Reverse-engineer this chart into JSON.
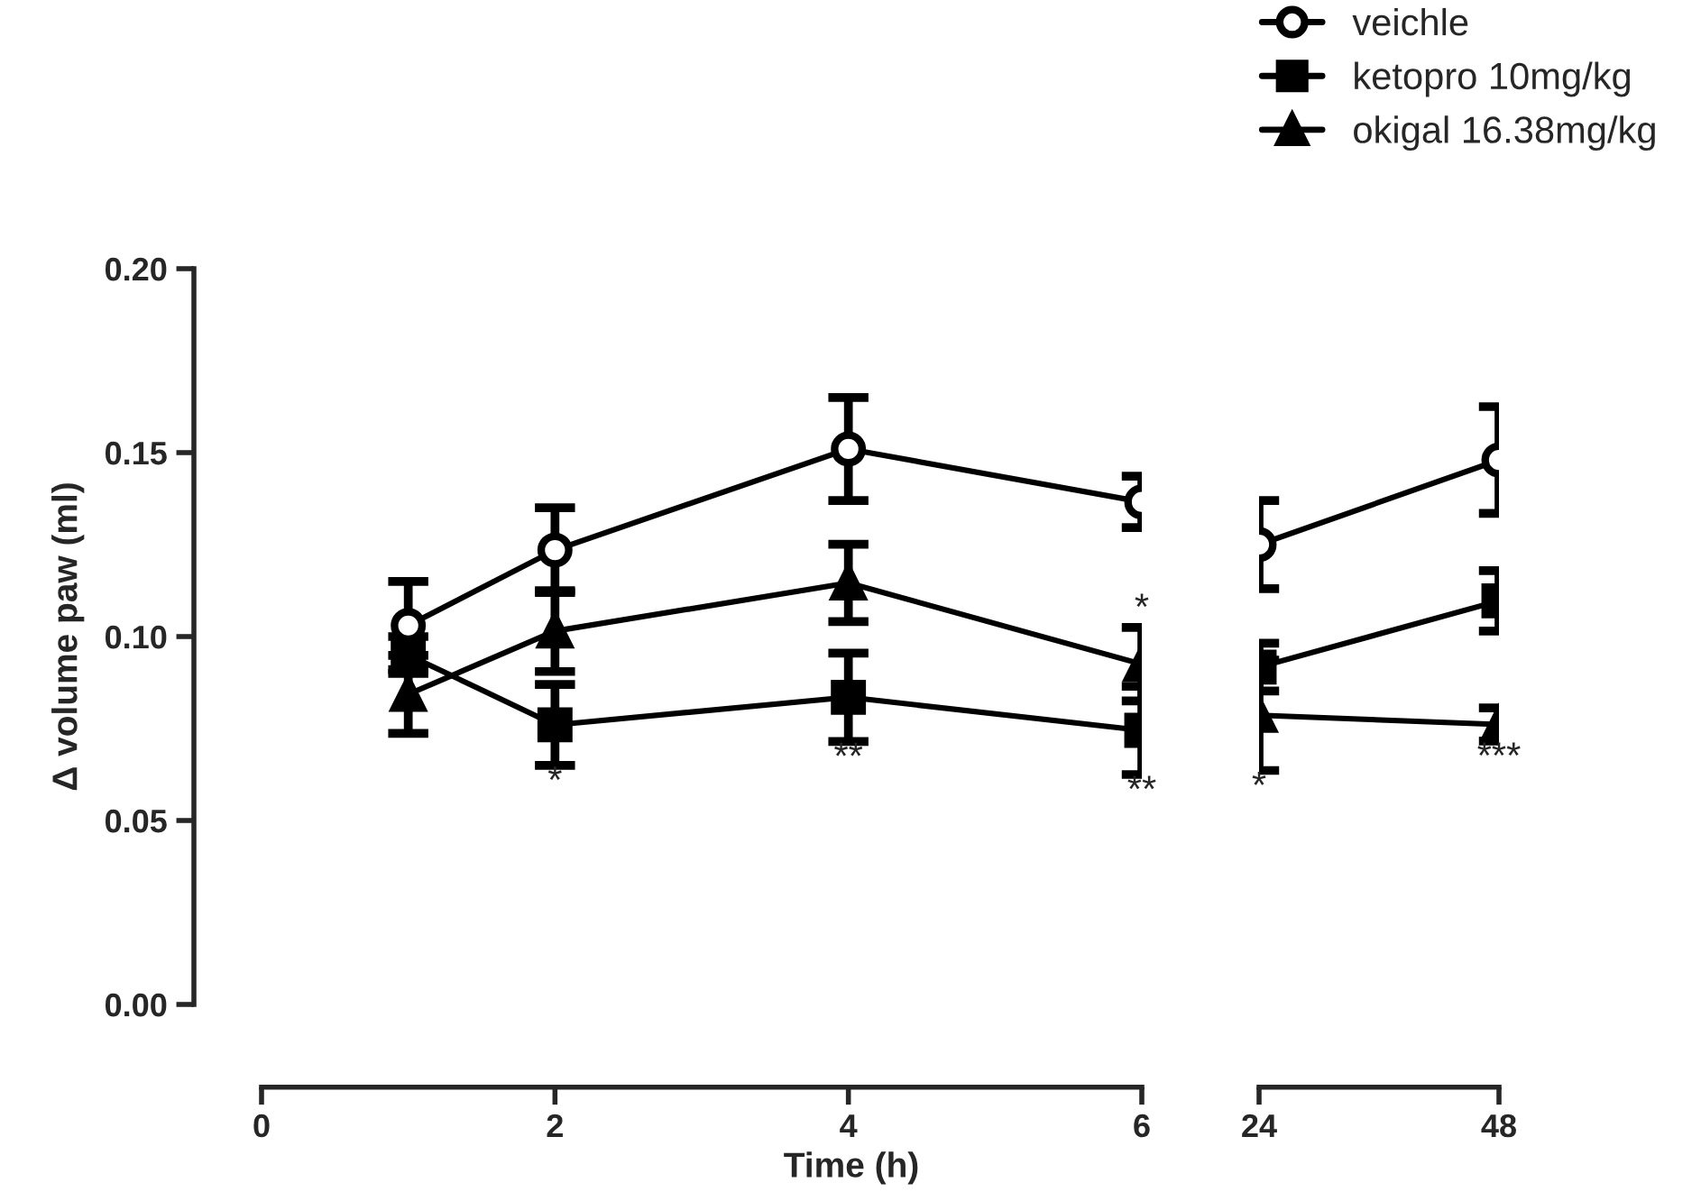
{
  "chart_data": [
    {
      "type": "line",
      "xlabel": "Time (h)",
      "ylabel": "Δ volume paw (ml)",
      "x": [
        1,
        2,
        4,
        6
      ],
      "xlim": [
        0,
        6
      ],
      "xticks": [
        0,
        2,
        4,
        6
      ],
      "ylim": [
        0,
        0.2
      ],
      "yticks": [
        {
          "value": 0,
          "label": "0.00"
        },
        {
          "value": 0.05,
          "label": "0.05"
        },
        {
          "value": 0.1,
          "label": "0.10"
        },
        {
          "value": 0.15,
          "label": "0.15"
        },
        {
          "value": 0.2,
          "label": "0.20"
        }
      ],
      "grid": false,
      "legend": false,
      "series": [
        {
          "color": "#000000",
          "marker": "circle",
          "values": [
            0.103,
            0.1235,
            0.151,
            0.1366
          ],
          "errors": [
            0.012,
            0.0115,
            0.014,
            0.007
          ]
        },
        {
          "color": "#000000",
          "marker": "square",
          "values": [
            0.095,
            0.076,
            0.0835,
            0.0745
          ],
          "errors": [
            0.005,
            0.011,
            0.012,
            0.012
          ]
        },
        {
          "color": "#000000",
          "marker": "triangle",
          "values": [
            0.0843,
            0.1015,
            0.1146,
            0.0925
          ],
          "errors": [
            0.0106,
            0.011,
            0.0105,
            0.01
          ]
        }
      ],
      "annotations": [
        {
          "text": "*",
          "x": 2,
          "y": 0.076
        },
        {
          "text": "**",
          "x": 4,
          "y": 0.0835
        },
        {
          "text": "*",
          "x": 6,
          "y": 0.0925
        },
        {
          "text": "**",
          "x": 6,
          "y": 0.0745
        }
      ]
    },
    {
      "type": "line",
      "x": [
        24,
        48
      ],
      "xlim": [
        24,
        48
      ],
      "xticks": [
        24,
        48
      ],
      "ylim": [
        0,
        0.2
      ],
      "tick_labels": "x",
      "grid": false,
      "legend": "top right",
      "series": [
        {
          "name": "veichle",
          "color": "#000000",
          "marker": "circle",
          "values": [
            0.125,
            0.148
          ],
          "errors": [
            0.012,
            0.0145
          ]
        },
        {
          "name": "ketopro 10mg/kg",
          "color": "#000000",
          "marker": "square",
          "values": [
            0.0917,
            0.1097
          ],
          "errors": [
            0.0065,
            0.0082
          ]
        },
        {
          "name": "okigal 16.38mg/kg",
          "color": "#000000",
          "marker": "triangle",
          "values": [
            0.0786,
            0.0761
          ],
          "errors": [
            0.015,
            0.0045
          ]
        }
      ],
      "annotations": [
        {
          "text": "*",
          "x": 24,
          "y": 0.0786
        },
        {
          "text": "***",
          "x": 48,
          "y": 0.0761
        }
      ]
    }
  ]
}
